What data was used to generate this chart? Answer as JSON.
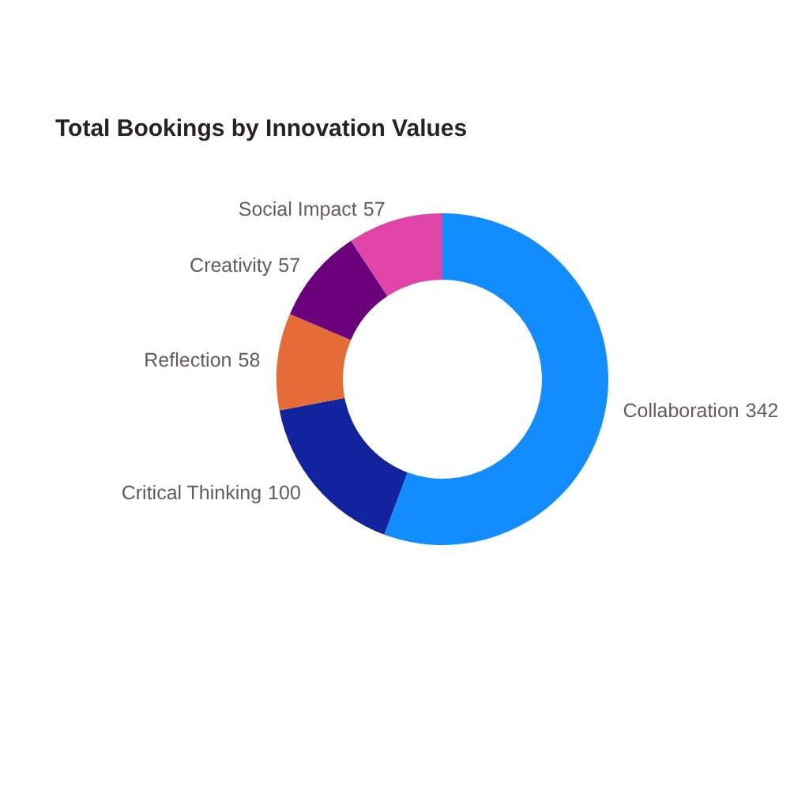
{
  "chart_data": {
    "type": "donut",
    "title": "Total Bookings by Innovation Values",
    "categories": [
      "Collaboration",
      "Critical Thinking",
      "Reflection",
      "Creativity",
      "Social Impact"
    ],
    "values": [
      342,
      100,
      58,
      57,
      57
    ],
    "colors": [
      "#118dff",
      "#12239e",
      "#e66c37",
      "#6b007b",
      "#e044a7"
    ],
    "data_labels": true
  }
}
